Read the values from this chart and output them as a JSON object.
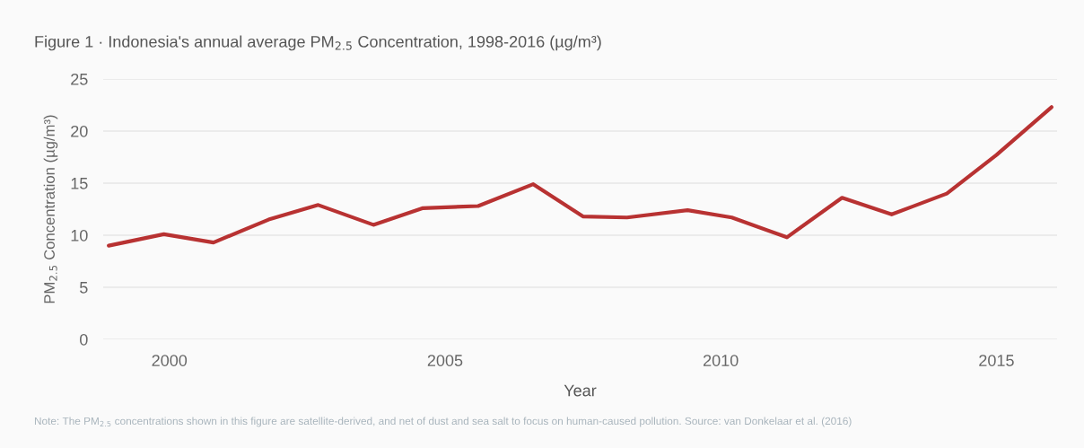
{
  "chart_data": {
    "type": "line",
    "title": "Figure 1 · Indonesia's annual average PM$_{2.5}$ Concentration, 1998-2016 (µg/m³)",
    "xlabel": "Year",
    "ylabel": "PM$_{2.5}$ Concentration (µg/m³)",
    "annotations": [
      "Note: The PM$_{2.5}$ concentrations shown in this figure are satellite-derived, and net of dust and sea salt to focus on human-caused pollution. Source: van Donkelaar et al. (2016)"
    ],
    "x": [
      1998.9,
      1999.9,
      2000.8,
      2001.8,
      2002.7,
      2003.7,
      2004.6,
      2005.6,
      2006.6,
      2007.5,
      2008.3,
      2009.4,
      2010.2,
      2011.2,
      2012.2,
      2013.1,
      2014.1,
      2015.0,
      2016.0
    ],
    "series": [
      {
        "color": "#b83232",
        "values": [
          9.0,
          10.1,
          9.3,
          11.5,
          12.9,
          11.0,
          12.6,
          12.8,
          14.9,
          11.8,
          11.7,
          12.4,
          11.7,
          9.8,
          13.6,
          12.0,
          14.0,
          17.7,
          22.3
        ]
      }
    ],
    "xlim": [
      1998.8,
      2016.1
    ],
    "xticks": [
      2000,
      2005,
      2010,
      2015
    ],
    "ylim": [
      0,
      25
    ],
    "yticks": [
      0,
      5,
      10,
      15,
      20,
      25
    ],
    "grid": "y",
    "legend": false,
    "marker": "none",
    "line_style": "solid"
  }
}
